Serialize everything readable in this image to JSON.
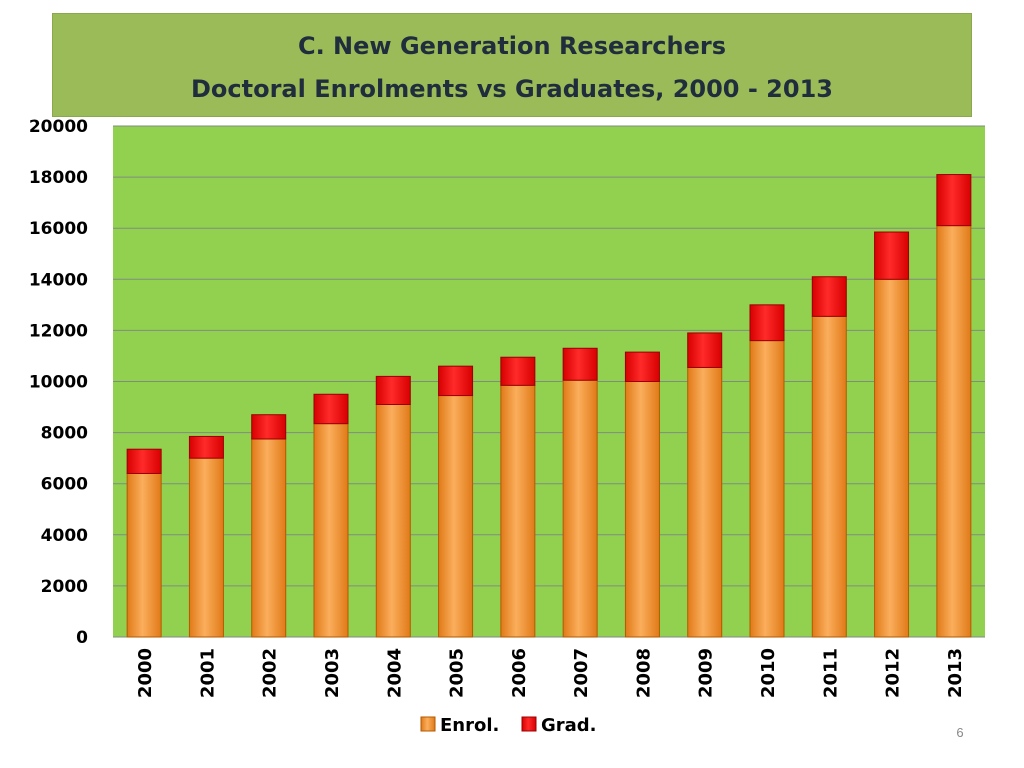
{
  "title": {
    "line1": "C. New Generation Researchers",
    "line2": "Doctoral Enrolments vs Graduates, 2000 - 2013"
  },
  "page_number": "6",
  "colors": {
    "title_bg": "#9bbb59",
    "plot_bg": "#92d050",
    "enrol": "#f79c3c",
    "grad": "#ff0000"
  },
  "chart_data": {
    "type": "bar",
    "stacked": true,
    "title": "C. New Generation Researchers Doctoral Enrolments vs Graduates, 2000 - 2013",
    "xlabel": "",
    "ylabel": "",
    "ylim": [
      0,
      20000
    ],
    "yticks": [
      0,
      2000,
      4000,
      6000,
      8000,
      10000,
      12000,
      14000,
      16000,
      18000,
      20000
    ],
    "grid": true,
    "legend_position": "bottom",
    "categories": [
      "2000",
      "2001",
      "2002",
      "2003",
      "2004",
      "2005",
      "2006",
      "2007",
      "2008",
      "2009",
      "2010",
      "2011",
      "2012",
      "2013"
    ],
    "series": [
      {
        "name": "Enrol.",
        "color": "#f79c3c",
        "values": [
          6400,
          7000,
          7750,
          8350,
          9100,
          9450,
          9850,
          10050,
          10000,
          10550,
          11600,
          12550,
          14000,
          16100
        ]
      },
      {
        "name": "Grad.",
        "color": "#ff0000",
        "values": [
          950,
          850,
          950,
          1150,
          1100,
          1150,
          1100,
          1250,
          1150,
          1350,
          1400,
          1550,
          1850,
          2000
        ]
      }
    ]
  }
}
